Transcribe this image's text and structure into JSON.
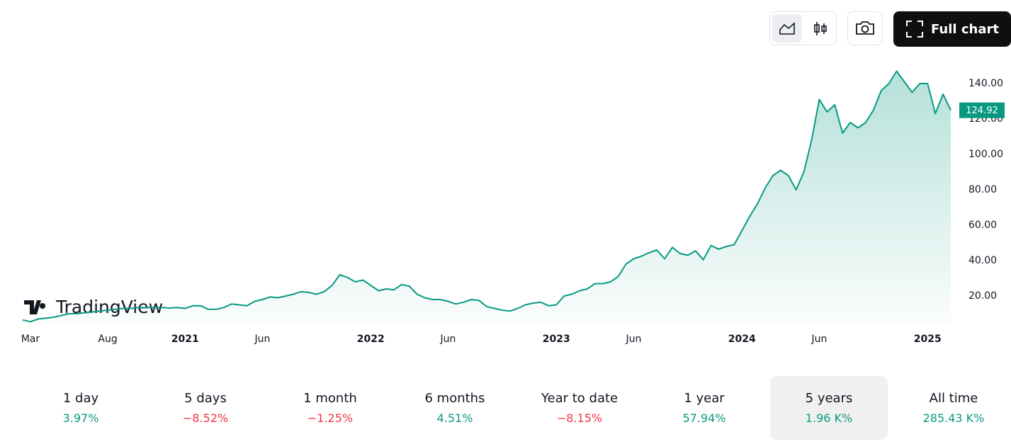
{
  "toolbar": {
    "full_chart": "Full chart"
  },
  "watermark": "TradingView",
  "chart_data": {
    "type": "area",
    "color": "#089981",
    "categories": [
      null,
      "Mar",
      null,
      null,
      null,
      null,
      null,
      null,
      null,
      null,
      null,
      "Aug",
      null,
      null,
      null,
      null,
      null,
      null,
      null,
      null,
      null,
      "2021",
      null,
      null,
      null,
      null,
      null,
      null,
      null,
      null,
      null,
      "Jun",
      null,
      null,
      null,
      null,
      null,
      null,
      null,
      null,
      null,
      null,
      null,
      null,
      null,
      "2022",
      null,
      null,
      null,
      null,
      null,
      null,
      null,
      null,
      null,
      "Jun",
      null,
      null,
      null,
      null,
      null,
      null,
      null,
      null,
      null,
      null,
      null,
      null,
      null,
      "2023",
      null,
      null,
      null,
      null,
      null,
      null,
      null,
      null,
      null,
      "Jun",
      null,
      null,
      null,
      null,
      null,
      null,
      null,
      null,
      null,
      null,
      null,
      null,
      null,
      "2024",
      null,
      null,
      null,
      null,
      null,
      null,
      null,
      null,
      null,
      "Jun",
      null,
      null,
      null,
      null,
      null,
      null,
      null,
      null,
      null,
      null,
      null,
      null,
      null,
      "2025",
      null,
      null,
      null
    ],
    "values": [
      6.5,
      5.5,
      7,
      7.5,
      8,
      9,
      10,
      10,
      10.5,
      11,
      11.5,
      12,
      12.5,
      13,
      13,
      13.5,
      13.5,
      13.5,
      13.5,
      13.2,
      13.5,
      13,
      14.5,
      14.5,
      12.5,
      12.5,
      13.5,
      15.5,
      15,
      14.5,
      17,
      18,
      19.5,
      19,
      20,
      21,
      22.5,
      22,
      21,
      22.5,
      26,
      32,
      30.5,
      28,
      29,
      26,
      23,
      24,
      23.5,
      26.5,
      25.5,
      21,
      19,
      18,
      18,
      17,
      15.5,
      16.5,
      18,
      17.5,
      14,
      13,
      12,
      11.5,
      13,
      15,
      16,
      16.5,
      14.5,
      15,
      20,
      21,
      23,
      24,
      27,
      27,
      28,
      31,
      38,
      41,
      42.5,
      44.5,
      46,
      41,
      47.5,
      44,
      43,
      45.5,
      40.5,
      48.5,
      46.5,
      48,
      49,
      57,
      65,
      72,
      81,
      88,
      91,
      88,
      80,
      90,
      108,
      131,
      124,
      128,
      112,
      118,
      115,
      118,
      125,
      136,
      140,
      147,
      141,
      135,
      140,
      140,
      123,
      134,
      124.92
    ],
    "last_value": {
      "value": 124.92,
      "label": "124.92"
    },
    "ylim": [
      5,
      151
    ],
    "yticks": [
      {
        "value": 20,
        "label": "20.00"
      },
      {
        "value": 40,
        "label": "40.00"
      },
      {
        "value": 60,
        "label": "60.00"
      },
      {
        "value": 80,
        "label": "80.00"
      },
      {
        "value": 100,
        "label": "100.00"
      },
      {
        "value": 120,
        "label": "120.00"
      },
      {
        "value": 140,
        "label": "140.00"
      }
    ],
    "grid": false
  },
  "periods": [
    {
      "label": "1 day",
      "change": "3.97%"
    },
    {
      "label": "5 days",
      "change": "−8.52%"
    },
    {
      "label": "1 month",
      "change": "−1.25%"
    },
    {
      "label": "6 months",
      "change": "4.51%"
    },
    {
      "label": "Year to date",
      "change": "−8.15%"
    },
    {
      "label": "1 year",
      "change": "57.94%"
    },
    {
      "label": "5 years",
      "change": "1.96 K%",
      "active": true
    },
    {
      "label": "All time",
      "change": "285.43 K%"
    }
  ]
}
